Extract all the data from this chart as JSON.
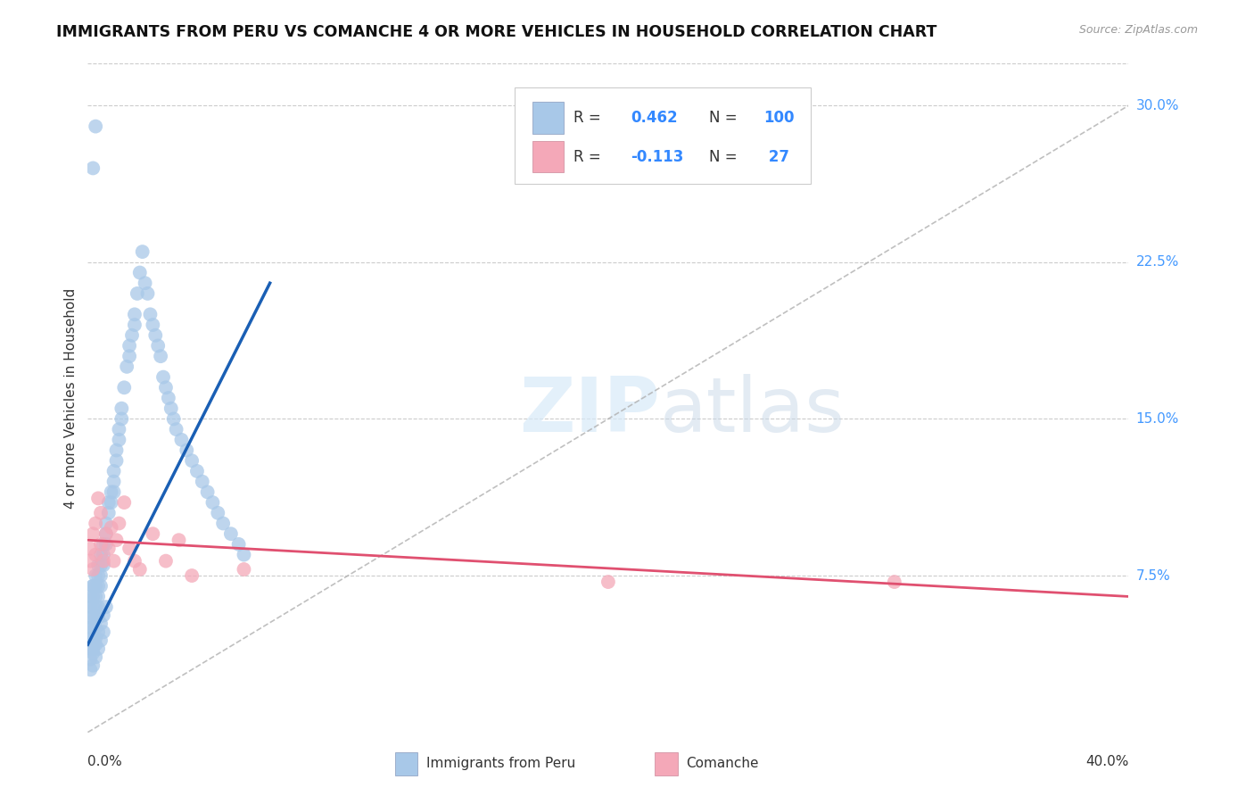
{
  "title": "IMMIGRANTS FROM PERU VS COMANCHE 4 OR MORE VEHICLES IN HOUSEHOLD CORRELATION CHART",
  "source": "Source: ZipAtlas.com",
  "ylabel_label": "4 or more Vehicles in Household",
  "ytick_labels": [
    "7.5%",
    "15.0%",
    "22.5%",
    "30.0%"
  ],
  "ytick_values": [
    0.075,
    0.15,
    0.225,
    0.3
  ],
  "xmin": 0.0,
  "xmax": 0.4,
  "ymin": 0.0,
  "ymax": 0.32,
  "legend_blue_label": "Immigrants from Peru",
  "legend_pink_label": "Comanche",
  "R_blue": 0.462,
  "N_blue": 100,
  "R_pink": -0.113,
  "N_pink": 27,
  "blue_color": "#a8c8e8",
  "pink_color": "#f4a8b8",
  "blue_line_color": "#1a5fb4",
  "pink_line_color": "#e05070",
  "blue_line_x": [
    0.0,
    0.07
  ],
  "blue_line_y": [
    0.042,
    0.215
  ],
  "pink_line_x": [
    0.0,
    0.4
  ],
  "pink_line_y": [
    0.092,
    0.065
  ],
  "ref_line_x": [
    0.0,
    0.4
  ],
  "ref_line_y": [
    0.0,
    0.3
  ],
  "blue_x": [
    0.001,
    0.001,
    0.001,
    0.001,
    0.001,
    0.001,
    0.002,
    0.002,
    0.002,
    0.002,
    0.002,
    0.002,
    0.002,
    0.002,
    0.003,
    0.003,
    0.003,
    0.003,
    0.003,
    0.003,
    0.003,
    0.004,
    0.004,
    0.004,
    0.004,
    0.004,
    0.004,
    0.005,
    0.005,
    0.005,
    0.005,
    0.006,
    0.006,
    0.006,
    0.007,
    0.007,
    0.007,
    0.008,
    0.008,
    0.009,
    0.009,
    0.01,
    0.01,
    0.01,
    0.011,
    0.011,
    0.012,
    0.012,
    0.013,
    0.013,
    0.014,
    0.015,
    0.016,
    0.016,
    0.017,
    0.018,
    0.018,
    0.019,
    0.02,
    0.021,
    0.022,
    0.023,
    0.024,
    0.025,
    0.026,
    0.027,
    0.028,
    0.029,
    0.03,
    0.031,
    0.032,
    0.033,
    0.034,
    0.036,
    0.038,
    0.04,
    0.042,
    0.044,
    0.046,
    0.048,
    0.05,
    0.052,
    0.055,
    0.058,
    0.06,
    0.001,
    0.001,
    0.002,
    0.002,
    0.003,
    0.003,
    0.004,
    0.004,
    0.005,
    0.005,
    0.006,
    0.006,
    0.007,
    0.002,
    0.003
  ],
  "blue_y": [
    0.055,
    0.06,
    0.065,
    0.05,
    0.045,
    0.04,
    0.07,
    0.065,
    0.06,
    0.055,
    0.05,
    0.045,
    0.04,
    0.07,
    0.075,
    0.07,
    0.065,
    0.06,
    0.055,
    0.05,
    0.045,
    0.08,
    0.075,
    0.07,
    0.065,
    0.06,
    0.055,
    0.085,
    0.08,
    0.075,
    0.07,
    0.09,
    0.085,
    0.08,
    0.1,
    0.095,
    0.09,
    0.11,
    0.105,
    0.115,
    0.11,
    0.125,
    0.12,
    0.115,
    0.135,
    0.13,
    0.145,
    0.14,
    0.155,
    0.15,
    0.165,
    0.175,
    0.185,
    0.18,
    0.19,
    0.2,
    0.195,
    0.21,
    0.22,
    0.23,
    0.215,
    0.21,
    0.2,
    0.195,
    0.19,
    0.185,
    0.18,
    0.17,
    0.165,
    0.16,
    0.155,
    0.15,
    0.145,
    0.14,
    0.135,
    0.13,
    0.125,
    0.12,
    0.115,
    0.11,
    0.105,
    0.1,
    0.095,
    0.09,
    0.085,
    0.035,
    0.03,
    0.038,
    0.032,
    0.042,
    0.036,
    0.048,
    0.04,
    0.052,
    0.044,
    0.056,
    0.048,
    0.06,
    0.27,
    0.29
  ],
  "pink_x": [
    0.001,
    0.001,
    0.002,
    0.002,
    0.003,
    0.003,
    0.004,
    0.005,
    0.005,
    0.006,
    0.007,
    0.008,
    0.009,
    0.01,
    0.011,
    0.012,
    0.014,
    0.016,
    0.018,
    0.02,
    0.025,
    0.03,
    0.035,
    0.04,
    0.06,
    0.2,
    0.31
  ],
  "pink_y": [
    0.082,
    0.088,
    0.095,
    0.078,
    0.1,
    0.085,
    0.112,
    0.09,
    0.105,
    0.082,
    0.095,
    0.088,
    0.098,
    0.082,
    0.092,
    0.1,
    0.11,
    0.088,
    0.082,
    0.078,
    0.095,
    0.082,
    0.092,
    0.075,
    0.078,
    0.072,
    0.072
  ]
}
